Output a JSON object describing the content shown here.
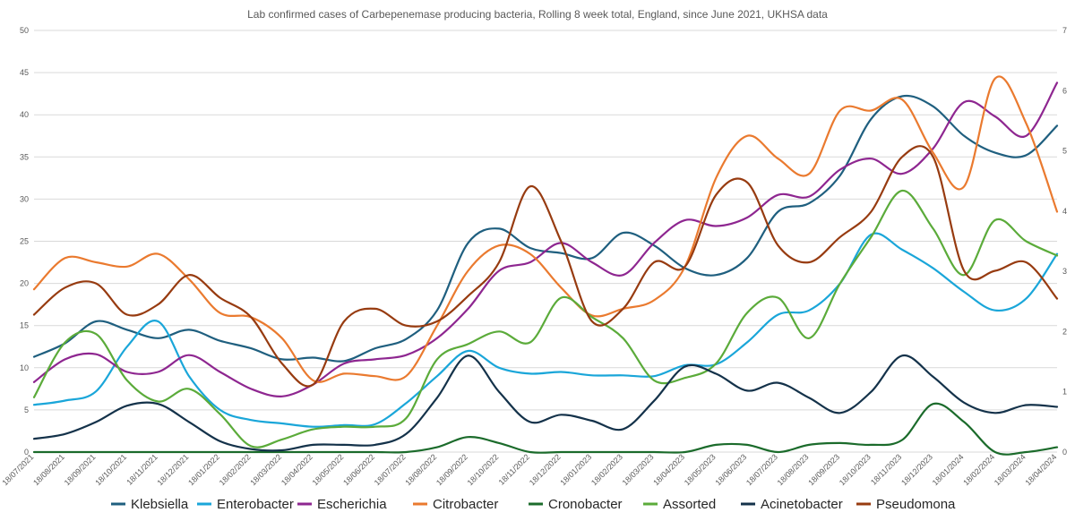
{
  "chart_data": {
    "type": "line",
    "title": "Lab confirmed cases of Carbepenemase producing bacteria, Rolling 8 week total, England, since June 2021, UKHSA data",
    "xlabel": "",
    "ylabel": "",
    "ylim": [
      0,
      50
    ],
    "y_ticks": [
      "0",
      "5",
      "10",
      "15",
      "20",
      "25",
      "30",
      "35",
      "40",
      "45",
      "50"
    ],
    "y2lim": [
      0,
      7
    ],
    "y2_ticks": [
      "0",
      "1",
      "2",
      "3",
      "4",
      "5",
      "6",
      "7"
    ],
    "grid": true,
    "legend_position": "bottom",
    "categories": [
      "18/07/2021",
      "18/08/2021",
      "18/09/2021",
      "18/10/2021",
      "18/11/2021",
      "18/12/2021",
      "18/01/2022",
      "18/02/2022",
      "18/03/2022",
      "18/04/2022",
      "18/05/2022",
      "18/06/2022",
      "18/07/2022",
      "18/08/2022",
      "18/09/2022",
      "18/10/2022",
      "18/11/2022",
      "18/12/2022",
      "18/01/2023",
      "18/02/2023",
      "18/03/2023",
      "18/04/2023",
      "18/05/2023",
      "18/06/2023",
      "18/07/2023",
      "18/08/2023",
      "18/09/2023",
      "18/10/2023",
      "18/11/2023",
      "18/12/2023",
      "18/01/2024",
      "18/02/2024",
      "18/03/2024",
      "18/04/2024"
    ],
    "series": [
      {
        "name": "Klebsiella",
        "color": "#1f5f7f",
        "axis": "left",
        "values": [
          11.3,
          12.9,
          15.5,
          14.5,
          13.5,
          14.5,
          13.2,
          12.3,
          11.0,
          11.2,
          10.8,
          12.3,
          13.4,
          16.8,
          24.8,
          26.5,
          24.2,
          23.6,
          23.0,
          26.0,
          24.5,
          21.8,
          21.0,
          23.0,
          28.5,
          29.5,
          32.8,
          39.5,
          42.2,
          41.0,
          37.5,
          35.5,
          35.2,
          38.7
        ]
      },
      {
        "name": "Enterobacter",
        "color": "#1aa6d9",
        "axis": "left",
        "values": [
          5.6,
          6.1,
          7.2,
          12.5,
          15.5,
          9.0,
          5.0,
          3.8,
          3.4,
          3.0,
          3.2,
          3.3,
          5.8,
          9.0,
          12.0,
          10.0,
          9.3,
          9.5,
          9.1,
          9.1,
          9.0,
          10.3,
          10.4,
          13.0,
          16.3,
          16.8,
          20.0,
          25.8,
          24.0,
          21.8,
          19.0,
          16.8,
          18.2,
          23.5
        ]
      },
      {
        "name": "Escherichia",
        "color": "#8e2690",
        "axis": "left",
        "values": [
          8.3,
          11.0,
          11.6,
          9.5,
          9.5,
          11.5,
          9.5,
          7.5,
          6.6,
          8.0,
          10.5,
          11.0,
          11.5,
          13.5,
          17.0,
          21.5,
          22.5,
          24.8,
          22.5,
          21.0,
          24.8,
          27.5,
          26.8,
          27.8,
          30.5,
          30.3,
          33.5,
          34.8,
          33.0,
          36.0,
          41.5,
          39.8,
          37.5,
          43.8
        ]
      },
      {
        "name": "Citrobacter",
        "color": "#ea7a2f",
        "axis": "left",
        "values": [
          19.3,
          23.0,
          22.5,
          22.0,
          23.5,
          20.5,
          16.5,
          16.0,
          13.5,
          8.5,
          9.3,
          9.0,
          9.0,
          15.0,
          21.5,
          24.5,
          23.5,
          19.5,
          16.2,
          17.0,
          18.0,
          22.0,
          32.5,
          37.5,
          34.8,
          33.0,
          40.5,
          40.5,
          41.8,
          35.5,
          31.5,
          44.3,
          39.0,
          28.5
        ]
      },
      {
        "name": "Cronobacter",
        "color": "#1b6b2b",
        "axis": "right",
        "values": [
          0,
          0,
          0,
          0,
          0,
          0,
          0,
          0,
          0,
          0,
          0,
          0,
          0,
          0.08,
          0.25,
          0.15,
          0,
          0,
          0,
          0,
          0,
          0,
          0.12,
          0.12,
          0,
          0.12,
          0.15,
          0.12,
          0.2,
          0.8,
          0.5,
          0,
          0,
          0.08
        ]
      },
      {
        "name": "Assorted",
        "color": "#5bab3a",
        "axis": "left",
        "values": [
          6.5,
          13.0,
          14.0,
          8.5,
          6.0,
          7.5,
          4.5,
          0.7,
          1.5,
          2.7,
          3.0,
          3.0,
          4.0,
          11.0,
          12.8,
          14.3,
          13.0,
          18.3,
          16.0,
          13.5,
          8.5,
          8.8,
          10.5,
          16.5,
          18.3,
          13.5,
          20.0,
          25.5,
          31.0,
          26.5,
          21.0,
          27.5,
          25.0,
          23.3
        ]
      },
      {
        "name": "Acinetobacter",
        "color": "#14324a",
        "axis": "right",
        "values": [
          0.22,
          0.3,
          0.5,
          0.77,
          0.8,
          0.5,
          0.18,
          0.05,
          0.03,
          0.12,
          0.12,
          0.12,
          0.3,
          0.9,
          1.6,
          1.0,
          0.5,
          0.62,
          0.52,
          0.38,
          0.85,
          1.42,
          1.3,
          1.02,
          1.15,
          0.9,
          0.65,
          1.0,
          1.6,
          1.25,
          0.82,
          0.65,
          0.78,
          0.75
        ]
      },
      {
        "name": "Pseudomona",
        "color": "#973b10",
        "axis": "left",
        "values": [
          16.3,
          19.5,
          20.0,
          16.3,
          17.5,
          21.0,
          18.3,
          16.0,
          10.5,
          8.0,
          15.5,
          17.0,
          15.0,
          15.5,
          18.5,
          22.5,
          31.5,
          25.0,
          15.5,
          17.0,
          22.5,
          22.0,
          30.5,
          32.0,
          24.5,
          22.5,
          25.5,
          28.5,
          35.0,
          35.0,
          21.5,
          21.5,
          22.5,
          18.2
        ]
      }
    ]
  }
}
